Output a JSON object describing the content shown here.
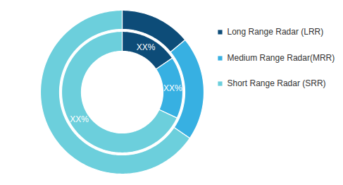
{
  "chart_data": {
    "type": "pie",
    "categories": [
      "Long Range Radar (LRR)",
      "Medium Range Radar(MRR)",
      "Short Range Radar (SRR)"
    ],
    "colors": [
      "#0d4c78",
      "#37b0e2",
      "#6ccfdc"
    ],
    "series": [
      {
        "values": [
          14,
          20.5,
          65.5
        ]
      },
      {
        "values": [
          15.5,
          16.5,
          68
        ],
        "value_labels": [
          "XX%",
          "XX%",
          "XX%"
        ]
      }
    ],
    "data_labels": true,
    "legend": "right"
  }
}
